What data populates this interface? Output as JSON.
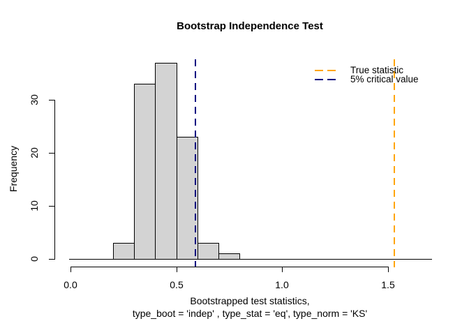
{
  "title": "Bootstrap Independence Test",
  "ylabel": "Frequency",
  "xlabel_line1": "Bootstrapped test statistics,",
  "xlabel_line2": "type_boot = 'indep' , type_stat = 'eq', type_norm = 'KS'",
  "legend": {
    "items": [
      {
        "label": "True statistic",
        "color": "#FFA500"
      },
      {
        "label": "5% critical value",
        "color": "#000080"
      }
    ]
  },
  "chart_data": {
    "type": "bar",
    "subtype": "histogram",
    "title": "Bootstrap Independence Test",
    "xlabel": "Bootstrapped test statistics, type_boot = 'indep' , type_stat = 'eq', type_norm = 'KS'",
    "ylabel": "Frequency",
    "bins": [
      {
        "start": 0.2,
        "end": 0.3,
        "count": 3
      },
      {
        "start": 0.3,
        "end": 0.4,
        "count": 33
      },
      {
        "start": 0.4,
        "end": 0.5,
        "count": 37
      },
      {
        "start": 0.5,
        "end": 0.6,
        "count": 23
      },
      {
        "start": 0.6,
        "end": 0.7,
        "count": 3
      },
      {
        "start": 0.7,
        "end": 0.8,
        "count": 1
      }
    ],
    "x_ticks": [
      {
        "value": 0.0,
        "label": "0.0"
      },
      {
        "value": 0.5,
        "label": "0.5"
      },
      {
        "value": 1.0,
        "label": "1.0"
      },
      {
        "value": 1.5,
        "label": "1.5"
      }
    ],
    "y_ticks": [
      {
        "value": 0,
        "label": "0"
      },
      {
        "value": 10,
        "label": "10"
      },
      {
        "value": 20,
        "label": "20"
      },
      {
        "value": 30,
        "label": "30"
      }
    ],
    "xlim": [
      0.0,
      1.7
    ],
    "ylim": [
      0,
      38
    ],
    "grid": false,
    "legend_position": "top-right",
    "bar_fill": "#D3D3D3",
    "bar_border": "#000000",
    "vlines": [
      {
        "name": "true-statistic-line",
        "value": 1.53,
        "label": "True statistic",
        "color": "#FFA500",
        "style": "dashed"
      },
      {
        "name": "critical-value-line",
        "value": 0.59,
        "label": "5% critical value",
        "color": "#000080",
        "style": "dashed"
      }
    ]
  }
}
